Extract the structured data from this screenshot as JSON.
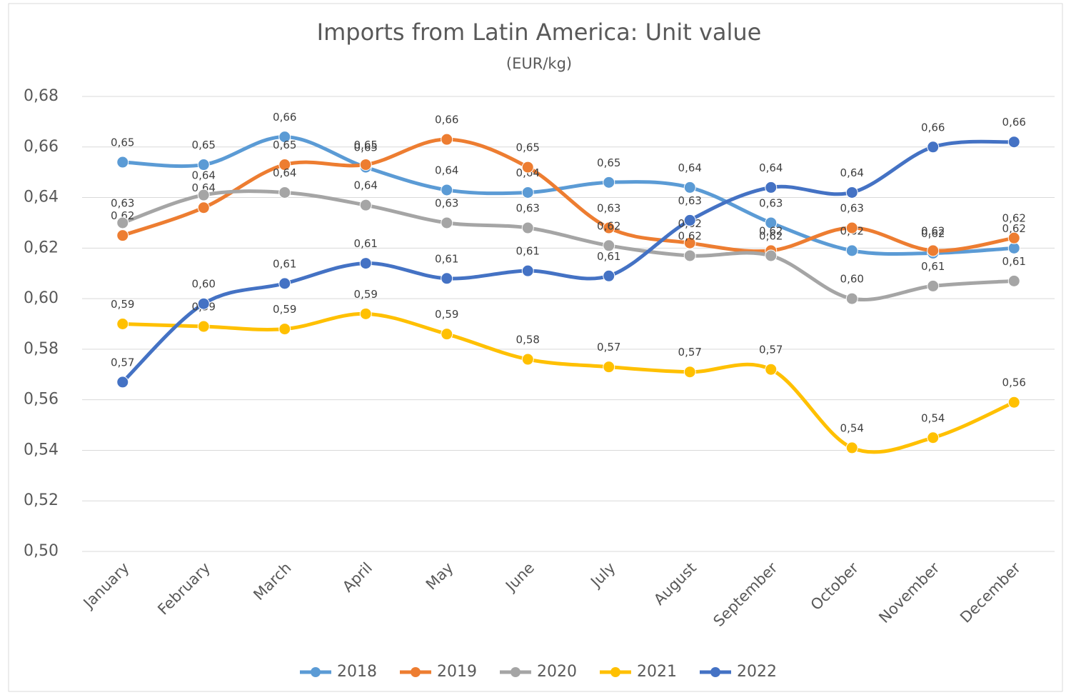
{
  "chart_data": {
    "type": "line",
    "title": "Imports from Latin America: Unit value",
    "subtitle": "(EUR/kg)",
    "categories": [
      "January",
      "February",
      "March",
      "April",
      "May",
      "June",
      "July",
      "August",
      "September",
      "October",
      "November",
      "December"
    ],
    "ylim": [
      0.5,
      0.68
    ],
    "yticks": [
      {
        "value": 0.5,
        "label": "0,50"
      },
      {
        "value": 0.52,
        "label": "0,52"
      },
      {
        "value": 0.54,
        "label": "0,54"
      },
      {
        "value": 0.56,
        "label": "0,56"
      },
      {
        "value": 0.58,
        "label": "0,58"
      },
      {
        "value": 0.6,
        "label": "0,60"
      },
      {
        "value": 0.62,
        "label": "0,62"
      },
      {
        "value": 0.64,
        "label": "0,64"
      },
      {
        "value": 0.66,
        "label": "0,66"
      },
      {
        "value": 0.68,
        "label": "0,68"
      }
    ],
    "grid": true,
    "legend": "bottom",
    "series": [
      {
        "name": "2018",
        "color": "#5b9bd5",
        "values": [
          0.654,
          0.653,
          0.664,
          0.652,
          0.643,
          0.642,
          0.646,
          0.644,
          0.63,
          0.619,
          0.618,
          0.62
        ],
        "value_labels": [
          "0,65",
          "0,65",
          "0,66",
          "0,65",
          "0,64",
          "0,64",
          "0,65",
          "0,64",
          "0,63",
          "0,62",
          "0,62",
          "0,62"
        ]
      },
      {
        "name": "2019",
        "color": "#ed7d31",
        "values": [
          0.625,
          0.636,
          0.653,
          0.653,
          0.663,
          0.652,
          0.628,
          0.622,
          0.619,
          0.628,
          0.619,
          0.624
        ],
        "value_labels": [
          "0,62",
          "0,64",
          "0,65",
          "0,65",
          "0,66",
          "0,65",
          "0,63",
          "0,62",
          "0,62",
          "0,63",
          "0,62",
          "0,62"
        ]
      },
      {
        "name": "2020",
        "color": "#a5a5a5",
        "values": [
          0.63,
          0.641,
          0.642,
          0.637,
          0.63,
          0.628,
          0.621,
          0.617,
          0.617,
          0.6,
          0.605,
          0.607
        ],
        "value_labels": [
          "0,63",
          "0,64",
          "0,64",
          "0,64",
          "0,63",
          "0,63",
          "0,62",
          "0,62",
          "0,62",
          "0,60",
          "0,61",
          "0,61"
        ]
      },
      {
        "name": "2021",
        "color": "#ffc000",
        "values": [
          0.59,
          0.589,
          0.588,
          0.594,
          0.586,
          0.576,
          0.573,
          0.571,
          0.572,
          0.541,
          0.545,
          0.559
        ],
        "value_labels": [
          "0,59",
          "0,59",
          "0,59",
          "0,59",
          "0,59",
          "0,58",
          "0,57",
          "0,57",
          "0,57",
          "0,54",
          "0,54",
          "0,56"
        ]
      },
      {
        "name": "2022",
        "color": "#4472c4",
        "values": [
          0.567,
          0.598,
          0.606,
          0.614,
          0.608,
          0.611,
          0.609,
          0.631,
          0.644,
          0.642,
          0.66,
          0.662
        ],
        "value_labels": [
          "0,57",
          "0,60",
          "0,61",
          "0,61",
          "0,61",
          "0,61",
          "0,61",
          "0,63",
          "0,64",
          "0,64",
          "0,66",
          "0,66"
        ]
      }
    ]
  }
}
